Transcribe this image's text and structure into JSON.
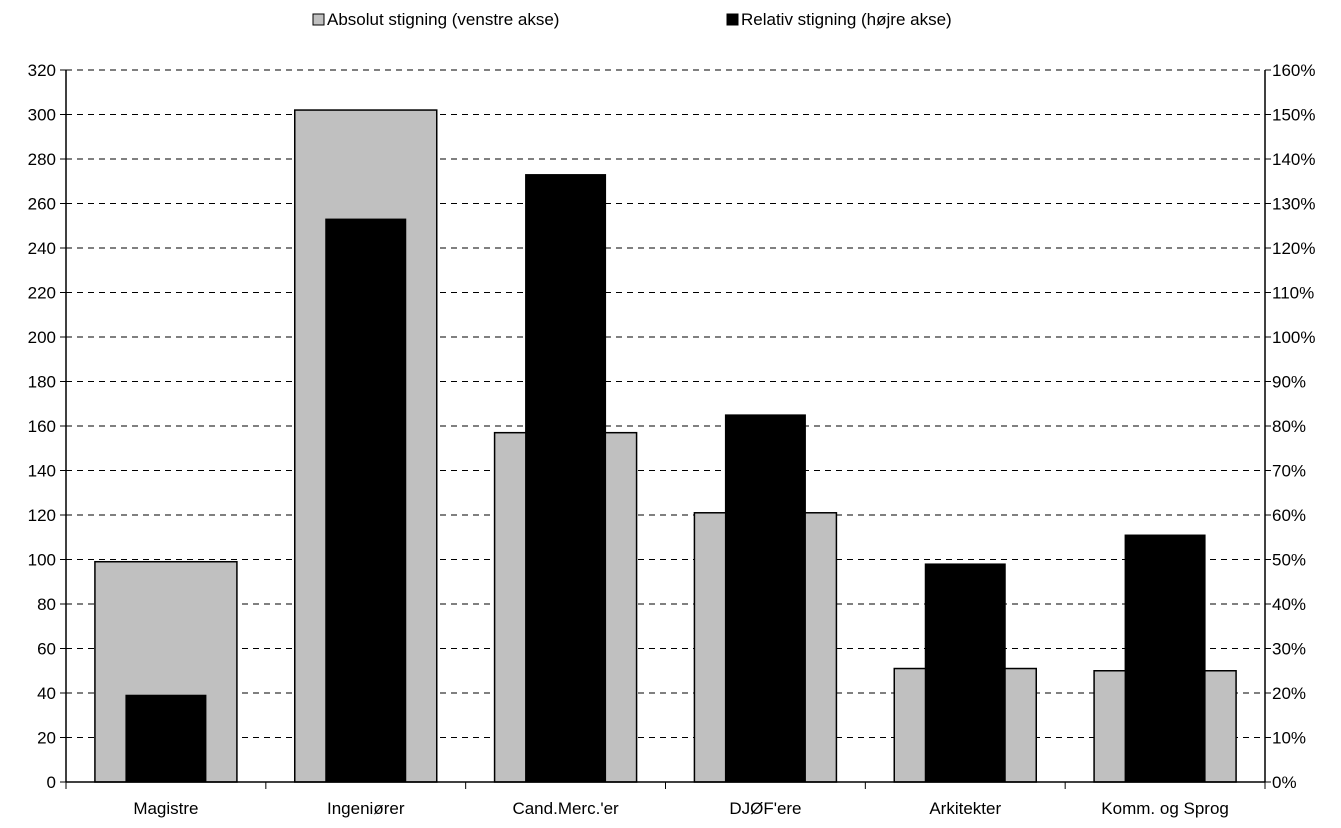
{
  "chart_data": {
    "type": "bar",
    "title": "",
    "categories": [
      "Magistre",
      "Ingeniører",
      "Cand.Merc.'er",
      "DJØF'ere",
      "Arkitekter",
      "Komm. og Sprog"
    ],
    "series": [
      {
        "name": "Absolut stigning (venstre akse)",
        "axis": "left",
        "color": "#c0c0c0",
        "values": [
          99,
          302,
          157,
          121,
          51,
          50
        ]
      },
      {
        "name": "Relativ stigning (højre akse)",
        "axis": "right",
        "color": "#000000",
        "values": [
          0.195,
          1.265,
          1.365,
          0.825,
          0.49,
          0.555
        ]
      }
    ],
    "y_left": {
      "ylim": [
        0,
        320
      ],
      "ticks": [
        "0",
        "20",
        "40",
        "60",
        "80",
        "100",
        "120",
        "140",
        "160",
        "180",
        "200",
        "220",
        "240",
        "260",
        "280",
        "300",
        "320"
      ]
    },
    "y_right": {
      "ylim": [
        0,
        1.6
      ],
      "ticks": [
        "0%",
        "10%",
        "20%",
        "30%",
        "40%",
        "50%",
        "60%",
        "70%",
        "80%",
        "90%",
        "100%",
        "110%",
        "120%",
        "130%",
        "140%",
        "150%",
        "160%"
      ]
    },
    "grid": "horizontal dashed",
    "legend_position": "top-center"
  }
}
